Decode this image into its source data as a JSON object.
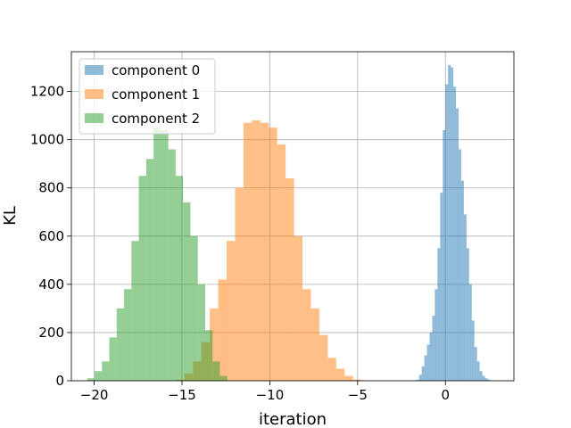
{
  "chart_data": {
    "type": "histogram",
    "title": "",
    "xlabel": "iteration",
    "ylabel": "KL",
    "xlim": [
      -21.3,
      3.9
    ],
    "ylim": [
      0,
      1365
    ],
    "xticks": [
      -20,
      -15,
      -10,
      -5,
      0
    ],
    "yticks": [
      0,
      200,
      400,
      600,
      800,
      1000,
      1200
    ],
    "grid": true,
    "legend": "top-left",
    "series": [
      {
        "name": "component 0",
        "color": "#1f77b4",
        "opacity": 0.5,
        "bin_start": -1.65,
        "bin_width": 0.15,
        "counts": [
          5,
          25,
          60,
          105,
          150,
          200,
          270,
          380,
          550,
          780,
          1040,
          1230,
          1310,
          1300,
          1220,
          1130,
          960,
          830,
          690,
          550,
          400,
          250,
          140,
          80,
          40,
          20,
          10,
          5
        ]
      },
      {
        "name": "component 1",
        "color": "#ff7f0e",
        "opacity": 0.5,
        "bin_start": -15.34,
        "bin_width": 0.48,
        "counts": [
          5,
          30,
          80,
          160,
          300,
          420,
          580,
          800,
          1070,
          1080,
          1070,
          1050,
          980,
          840,
          600,
          380,
          300,
          190,
          95,
          50,
          20,
          5
        ]
      },
      {
        "name": "component 2",
        "color": "#2ca02c",
        "opacity": 0.5,
        "bin_start": -20.4,
        "bin_width": 0.42,
        "counts": [
          10,
          40,
          80,
          180,
          300,
          380,
          580,
          850,
          920,
          1050,
          1040,
          960,
          850,
          740,
          600,
          400,
          210,
          80,
          20
        ]
      }
    ]
  }
}
